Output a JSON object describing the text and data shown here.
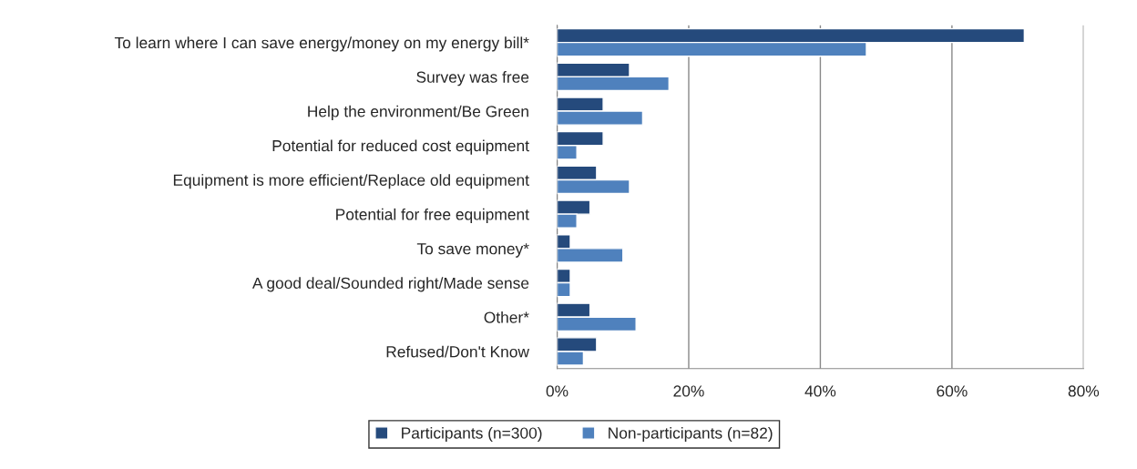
{
  "chart_data": {
    "type": "bar",
    "orientation": "horizontal",
    "categories": [
      "To learn where I can save energy/money on my energy bill*",
      "Survey was free",
      "Help the environment/Be Green",
      "Potential for reduced cost equipment",
      "Equipment is more efficient/Replace old equipment",
      "Potential for free equipment",
      "To save money*",
      "A good deal/Sounded right/Made sense",
      "Other*",
      "Refused/Don't Know"
    ],
    "series": [
      {
        "name": "Participants (n=300)",
        "color": "#254a7c",
        "values": [
          71,
          11,
          7,
          7,
          6,
          5,
          2,
          2,
          5,
          6
        ]
      },
      {
        "name": "Non-participants (n=82)",
        "color": "#4f81bd",
        "values": [
          47,
          17,
          13,
          3,
          11,
          3,
          10,
          2,
          12,
          4
        ]
      }
    ],
    "xlim": [
      0,
      80
    ],
    "xticks": [
      {
        "value": 0,
        "label": "0%"
      },
      {
        "value": 20,
        "label": "20%"
      },
      {
        "value": 40,
        "label": "40%"
      },
      {
        "value": 60,
        "label": "60%"
      },
      {
        "value": 80,
        "label": "80%"
      }
    ],
    "grid": "x",
    "legend": "bottom"
  }
}
